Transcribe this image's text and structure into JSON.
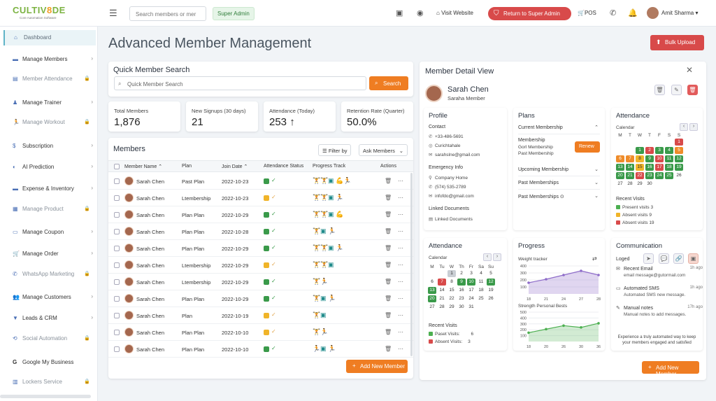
{
  "app": {
    "logo_text": "CULTIV",
    "logo_highlight": "8",
    "logo_text2": "DE",
    "logo_sub": "Core Automation Software"
  },
  "header": {
    "search_placeholder": "Search members or mer",
    "role": "Super Admin",
    "visit": "Visit Website",
    "return": "Return to Super Admin",
    "pos": "POS",
    "user": "Amit Sharma"
  },
  "sidebar": {
    "items": [
      {
        "label": "Dashboard",
        "icon": "home-icon",
        "state": "active"
      },
      {
        "label": "Manage Members",
        "icon": "card-icon",
        "state": "arrow"
      },
      {
        "label": "Member Attendance",
        "icon": "clipboard-icon",
        "state": "lock"
      },
      {
        "label": "Manage Trainer",
        "icon": "person-icon",
        "state": "arrow"
      },
      {
        "label": "Manage Workout",
        "icon": "run-icon",
        "state": "lock"
      },
      {
        "label": "Subscription",
        "icon": "dollar-icon",
        "state": "arrow"
      },
      {
        "label": "AI Prediction",
        "icon": "ai-icon",
        "state": "arrow"
      },
      {
        "label": "Expense & Inventory",
        "icon": "wallet-icon",
        "state": "arrow"
      },
      {
        "label": "Manage Product",
        "icon": "box-icon",
        "state": "lock"
      },
      {
        "label": "Manage Coupon",
        "icon": "coupon-icon",
        "state": "arrow"
      },
      {
        "label": "Manage Order",
        "icon": "cart-icon",
        "state": "arrow"
      },
      {
        "label": "WhatsApp Marketing",
        "icon": "whatsapp-icon",
        "state": "lock"
      },
      {
        "label": "Manage Customers",
        "icon": "users-icon",
        "state": "arrow"
      },
      {
        "label": "Leads & CRM",
        "icon": "funnel-icon",
        "state": "arrow"
      },
      {
        "label": "Social Automation",
        "icon": "share-icon",
        "state": "lock"
      },
      {
        "label": "Google My Business",
        "icon": "google-icon",
        "state": "none"
      },
      {
        "label": "Lockers Service",
        "icon": "locker-icon",
        "state": "lock"
      }
    ]
  },
  "page": {
    "title": "Advanced Member Management",
    "bulk": "Bulk Upload"
  },
  "quick_search": {
    "title": "Quick Member Search",
    "placeholder": "Quick Member Search",
    "button": "Search"
  },
  "stats": [
    {
      "label": "Total Members",
      "value": "1,876"
    },
    {
      "label": "New Signups (30 days)",
      "value": "21"
    },
    {
      "label": "Attendance (Today)",
      "value": "253 ↑"
    },
    {
      "label": "Retention Rate (Quarter)",
      "value": "50.0%"
    }
  ],
  "members": {
    "title": "Members",
    "filter": "Filter by",
    "ask": "Ask Members",
    "add": "Add New Member",
    "columns": [
      "Member Name ⌃",
      "Plan",
      "Join Date ⌃",
      "Attendance Status",
      "Progress Track",
      "Actions"
    ],
    "rows": [
      {
        "name": "Sarah Chen",
        "plan": "Past Plan",
        "date": "2022-10-23",
        "status": "green",
        "progress": "🏋🏋▣💪🏃"
      },
      {
        "name": "Sarah Chen",
        "plan": "Ltembership",
        "date": "2022-10-23",
        "status": "yellow",
        "progress": "🏋🏋▣🏃"
      },
      {
        "name": "Sarah Chen",
        "plan": "Plan Plan",
        "date": "2022-10-29",
        "status": "green",
        "progress": "🏋🏋▣💪"
      },
      {
        "name": "Sarah Chen",
        "plan": "Plan Plan",
        "date": "2022-10-28",
        "status": "green",
        "progress": "🏋▣🏃"
      },
      {
        "name": "Sarah Chen",
        "plan": "Plan Plan",
        "date": "2022-10-29",
        "status": "green",
        "progress": "🏋🏋▣🏃"
      },
      {
        "name": "Sarah Chen",
        "plan": "Ltembership",
        "date": "2022-10-29",
        "status": "yellow",
        "progress": "🏋🏋▣"
      },
      {
        "name": "Sarah Chen",
        "plan": "Ltembership",
        "date": "2022-10-29",
        "status": "green",
        "progress": "🏋🏃"
      },
      {
        "name": "Sarah Chen",
        "plan": "Plan Plan",
        "date": "2022-10-29",
        "status": "green",
        "progress": "🏋▣🏃"
      },
      {
        "name": "Sarah Chen",
        "plan": "Plan",
        "date": "2022-10-19",
        "status": "yellow",
        "progress": "🏋▣"
      },
      {
        "name": "Sarah Chen",
        "plan": "Plan Plan",
        "date": "2022-10-10",
        "status": "yellow",
        "progress": "🏋🏃"
      },
      {
        "name": "Sarah Chen",
        "plan": "Plan Plan",
        "date": "2022-10-10",
        "status": "green",
        "progress": "🏃▣🏃"
      }
    ]
  },
  "detail": {
    "title": "Member Detail View",
    "name": "Sarah Chen",
    "role": "Saraha Member",
    "add": "Add New Member",
    "profile": {
      "title": "Profile",
      "contact_h": "Contact",
      "phone": "+33-486-5691",
      "handle": "Curichtahale",
      "email": "sarahslne@gmail.com",
      "emergency_h": "Emergency Info",
      "company": "Company Home",
      "ephone": "(574) 535-2789",
      "eemail": "infofdo@gmail.com",
      "linked_h": "Linked Documents",
      "linked": "Linked Documents"
    },
    "plans": {
      "title": "Plans",
      "current": "Current Membership",
      "membership": "Membership",
      "m1": "Gorl Membership",
      "m2": "Past Membership",
      "renew": "Renew",
      "upcoming": "Upcoming Membership",
      "past1": "Past Memberships",
      "past2": "Past Memberships ⊙"
    },
    "attendance_top": {
      "title": "Attendance",
      "cal": "Calendar",
      "days": [
        "M",
        "T",
        "W",
        "T",
        "F",
        "S",
        "S"
      ],
      "weeks": [
        [
          [
            "",
            ""
          ],
          [
            "",
            ""
          ],
          [
            "",
            ""
          ],
          [
            "",
            ""
          ],
          [
            "",
            ""
          ],
          [
            "",
            ""
          ],
          [
            "1",
            "r"
          ]
        ],
        [
          [
            "",
            ""
          ],
          [
            "",
            ""
          ],
          [
            "1",
            "g"
          ],
          [
            "2",
            "r"
          ],
          [
            "3",
            "g"
          ],
          [
            "4",
            "g"
          ],
          [
            "5",
            "o"
          ]
        ],
        [
          [
            "6",
            "o"
          ],
          [
            "7",
            "o"
          ],
          [
            "8",
            "y"
          ],
          [
            "9",
            "g"
          ],
          [
            "10",
            "r"
          ],
          [
            "11",
            "g"
          ],
          [
            "12",
            "g"
          ]
        ],
        [
          [
            "13",
            "g"
          ],
          [
            "14",
            "g"
          ],
          [
            "15",
            "y"
          ],
          [
            "16",
            "g"
          ],
          [
            "17",
            "r"
          ],
          [
            "18",
            "g"
          ],
          [
            "19",
            "g"
          ]
        ],
        [
          [
            "20",
            "g"
          ],
          [
            "21",
            "g"
          ],
          [
            "22",
            "r"
          ],
          [
            "23",
            "g"
          ],
          [
            "24",
            "g"
          ],
          [
            "25",
            "g"
          ],
          [
            "26",
            ""
          ]
        ],
        [
          [
            "27",
            ""
          ],
          [
            "28",
            ""
          ],
          [
            "29",
            ""
          ],
          [
            "30",
            ""
          ],
          [
            "",
            ""
          ],
          [
            "",
            ""
          ],
          [
            "",
            ""
          ]
        ]
      ],
      "recent": "Recent Visits",
      "present": "Present visits",
      "present_n": "3",
      "absent1": "Absent visits",
      "absent1_n": "9",
      "absent2": "Absent visits",
      "absent2_n": "19"
    },
    "attendance_bot": {
      "title": "Attendance",
      "cal": "Calendar",
      "days": [
        "M",
        "Tu",
        "W",
        "Th",
        "Fr",
        "Sa",
        "Su"
      ],
      "weeks": [
        [
          [
            "",
            ""
          ],
          [
            "",
            ""
          ],
          [
            "1",
            "gr"
          ],
          [
            "2",
            ""
          ],
          [
            "3",
            ""
          ],
          [
            "4",
            ""
          ],
          [
            "5",
            ""
          ]
        ],
        [
          [
            "6",
            ""
          ],
          [
            "7",
            "r"
          ],
          [
            "8",
            ""
          ],
          [
            "9",
            "g"
          ],
          [
            "10",
            "g"
          ],
          [
            "11",
            ""
          ],
          [
            "12",
            "g"
          ]
        ],
        [
          [
            "13",
            "g"
          ],
          [
            "14",
            ""
          ],
          [
            "15",
            ""
          ],
          [
            "16",
            ""
          ],
          [
            "17",
            ""
          ],
          [
            "18",
            ""
          ],
          [
            "19",
            ""
          ]
        ],
        [
          [
            "20",
            "g"
          ],
          [
            "21",
            ""
          ],
          [
            "22",
            ""
          ],
          [
            "23",
            ""
          ],
          [
            "24",
            ""
          ],
          [
            "25",
            ""
          ],
          [
            "26",
            ""
          ]
        ],
        [
          [
            "27",
            ""
          ],
          [
            "28",
            ""
          ],
          [
            "29",
            ""
          ],
          [
            "30",
            ""
          ],
          [
            "31",
            ""
          ],
          [
            "",
            ""
          ],
          [
            "",
            ""
          ]
        ]
      ],
      "recent": "Recent Visits",
      "paset": "Paset Visits:",
      "paset_n": "6",
      "absent": "Absent Visits:",
      "absent_n": "3"
    },
    "progress": {
      "title": "Progress",
      "weight": "Weight tracker",
      "strength": "Strength Personal Bests"
    },
    "communication": {
      "title": "Communication",
      "loged": "Loged",
      "items": [
        {
          "t": "Recent Email",
          "d": "email message@gutormail.com",
          "time": "1h ago"
        },
        {
          "t": "Automated SMS",
          "d": "Automated SMS new message.",
          "time": "1h ago"
        },
        {
          "t": "Manual notes",
          "d": "Manual notes to add messages.",
          "time": "17h ago"
        }
      ],
      "foot": "Experience a truly automated way to keep your members engaged and satisfied"
    }
  },
  "chart_data": [
    {
      "type": "area",
      "title": "Weight tracker",
      "x": [
        "18",
        "21",
        "24",
        "27",
        "28"
      ],
      "y_ticks": [
        "100",
        "200",
        "300",
        "400"
      ],
      "series": [
        {
          "values": [
            160,
            210,
            270,
            330,
            270
          ]
        }
      ],
      "ylim": [
        0,
        400
      ]
    },
    {
      "type": "area",
      "title": "Strength Personal Bests",
      "x": [
        "18",
        "20",
        "26",
        "30",
        "36"
      ],
      "y_ticks": [
        "100",
        "200",
        "300",
        "400",
        "500"
      ],
      "series": [
        {
          "values": [
            150,
            210,
            270,
            240,
            310
          ]
        }
      ],
      "ylim": [
        0,
        500
      ]
    }
  ],
  "colors": {
    "accent": "#ef7d22",
    "red": "#d84a4a",
    "green": "#3a9a4a"
  }
}
